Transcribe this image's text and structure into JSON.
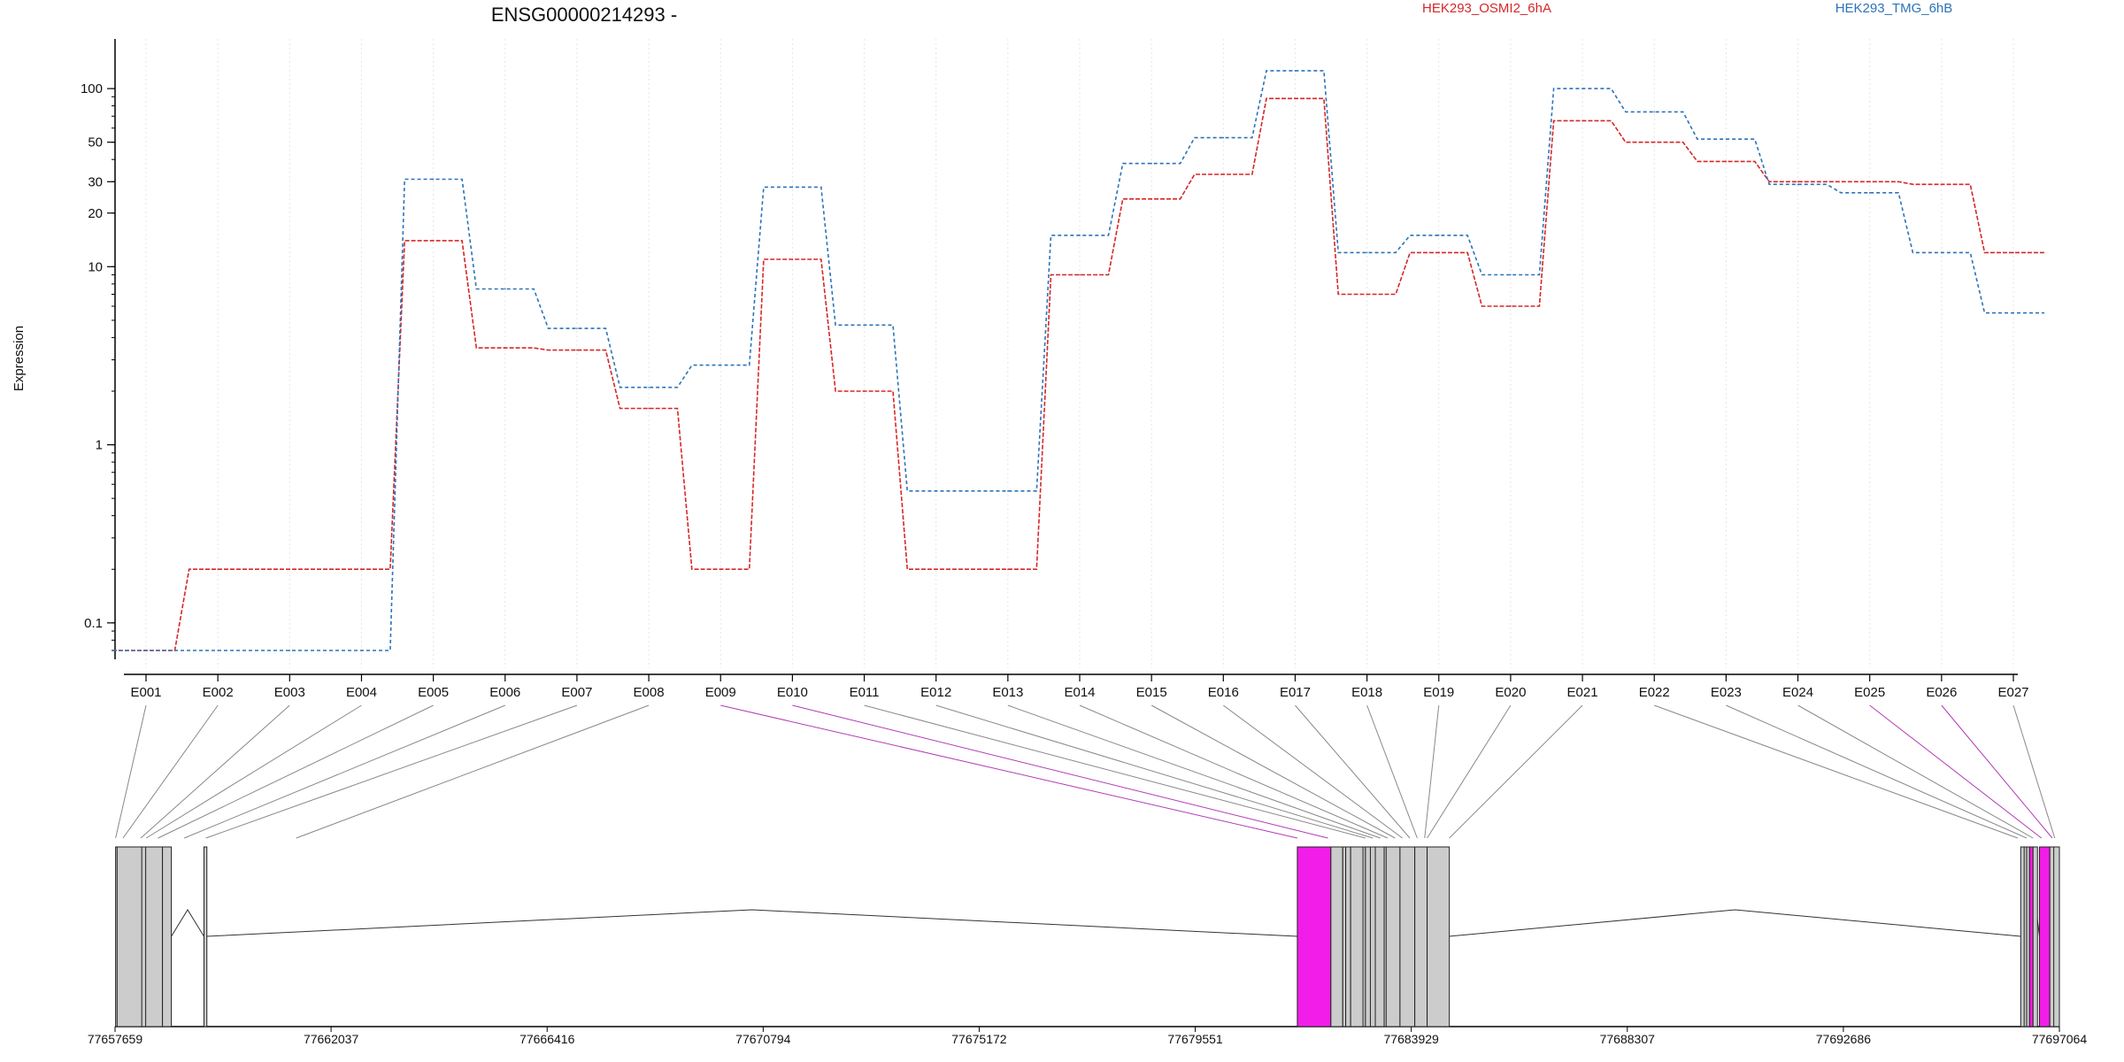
{
  "chart_data": {
    "type": "line",
    "title": "ENSG00000214293 -",
    "ylabel": "Expression",
    "xlabel": "",
    "yscale": "log",
    "ylim": [
      0.07,
      190
    ],
    "yticks": [
      0.1,
      1,
      10,
      20,
      30,
      50,
      100
    ],
    "grid": "vertical",
    "legend_position": "top-right",
    "categories": [
      "E001",
      "E002",
      "E003",
      "E004",
      "E005",
      "E006",
      "E007",
      "E008",
      "E009",
      "E010",
      "E011",
      "E012",
      "E013",
      "E014",
      "E015",
      "E016",
      "E017",
      "E018",
      "E019",
      "E020",
      "E021",
      "E022",
      "E023",
      "E024",
      "E025",
      "E026",
      "E027"
    ],
    "series": [
      {
        "name": "HEK293_OSMI2_6hA",
        "color": "#d62728",
        "values": [
          0.07,
          0.2,
          0.2,
          0.2,
          14,
          3.5,
          3.4,
          1.6,
          0.2,
          11,
          2,
          0.2,
          0.2,
          9,
          24,
          33,
          88,
          7,
          12,
          6,
          66,
          50,
          39,
          30,
          30,
          29,
          12
        ]
      },
      {
        "name": "HEK293_TMG_6hB",
        "color": "#2b73b8",
        "values": [
          0.07,
          0.07,
          0.07,
          0.07,
          31,
          7.5,
          4.5,
          2.1,
          2.8,
          28,
          4.7,
          0.55,
          0.55,
          15,
          38,
          53,
          126,
          12,
          15,
          9,
          100,
          74,
          52,
          29,
          26,
          12,
          5.5
        ]
      }
    ],
    "gene_model": {
      "coordinate_ticks": [
        "77657659",
        "77662037",
        "77666416",
        "77670794",
        "77675172",
        "77679551",
        "77683929",
        "77688307",
        "77692686",
        "77697064"
      ],
      "genome_range": [
        77657659,
        77697064
      ],
      "exon_fill": "#cccccc",
      "highlight_fill": "#f21de8",
      "highlighted_exons": [
        "E009",
        "E010",
        "E025",
        "E026"
      ],
      "exon_positions": [
        77657670,
        77657820,
        77658180,
        77658290,
        77658530,
        77659060,
        77659500,
        77661330,
        77681620,
        77682240,
        77683000,
        77683150,
        77683300,
        77683450,
        77683600,
        77683750,
        77683900,
        77684050,
        77684200,
        77684250,
        77684700,
        77696220,
        77696400,
        77696530,
        77696700,
        77696920,
        77696970
      ]
    }
  }
}
